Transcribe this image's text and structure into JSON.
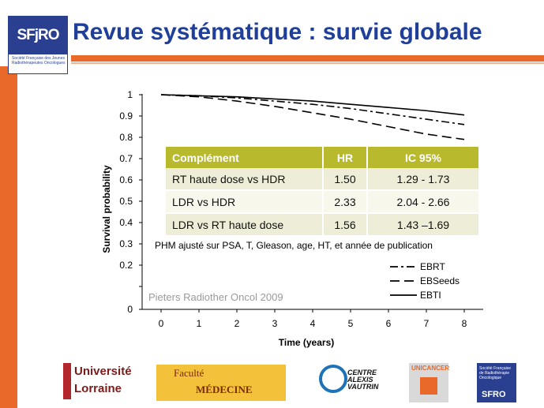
{
  "header": {
    "title": "Revue systématique : survie globale",
    "logo_text": "SFjRO",
    "logo_subtext": "Société Française des Jeunes Radiothérapeutes Oncologues"
  },
  "chart_data": {
    "type": "line",
    "xlabel": "Time (years)",
    "ylabel": "Survival probability",
    "x_ticks": [
      0,
      1,
      2,
      3,
      4,
      5,
      6,
      7,
      8
    ],
    "y_ticks": [
      "0",
      "0.2",
      "0.3",
      "0.4",
      "0.5",
      "0.6",
      "0.7",
      "0.8",
      "0.9",
      "1"
    ],
    "xlim": [
      0,
      8
    ],
    "ylim": [
      0,
      1
    ],
    "legend_position": "bottom-right",
    "series": [
      {
        "name": "EBRT",
        "style": "dashdot",
        "x": [
          0,
          1,
          2,
          3,
          4,
          5,
          6,
          7,
          8
        ],
        "y": [
          1,
          0.995,
          0.985,
          0.97,
          0.955,
          0.935,
          0.91,
          0.885,
          0.86
        ]
      },
      {
        "name": "EBSeeds",
        "style": "dashed",
        "x": [
          0,
          1,
          2,
          3,
          4,
          5,
          6,
          7,
          8
        ],
        "y": [
          1,
          0.99,
          0.97,
          0.945,
          0.915,
          0.885,
          0.85,
          0.815,
          0.79
        ]
      },
      {
        "name": "EBTI",
        "style": "solid",
        "x": [
          0,
          1,
          2,
          3,
          4,
          5,
          6,
          7,
          8
        ],
        "y": [
          1,
          0.995,
          0.99,
          0.98,
          0.97,
          0.955,
          0.94,
          0.925,
          0.905
        ]
      }
    ]
  },
  "hr_table": {
    "headers": [
      "Complément",
      "HR",
      "IC 95%"
    ],
    "rows": [
      [
        "RT haute dose vs HDR",
        "1.50",
        "1.29 - 1.73"
      ],
      [
        "LDR vs HDR",
        "2.33",
        "2.04 - 2.66"
      ],
      [
        "LDR vs RT haute dose",
        "1.56",
        "1.43 –1.69"
      ]
    ]
  },
  "footnote": "PHM ajusté sur PSA, T, Gleason, age, HT, et année de publication",
  "source": "Pieters Radiother Oncol 2009",
  "footer": {
    "universite_line1": "Université",
    "universite_line2": "Lorraine",
    "medecine_line1": "Faculté",
    "medecine_line2": "MÉDECINE",
    "cav_text": "CENTRE ALEXIS VAUTRIN",
    "unicancer": "UNICANCER",
    "sfro_small": "Société Française de Radiothérapie Oncologique",
    "sfro": "SFRO"
  },
  "colors": {
    "accent_orange": "#e8692a",
    "title_blue": "#1f3f9a",
    "table_header": "#b9b92e"
  }
}
